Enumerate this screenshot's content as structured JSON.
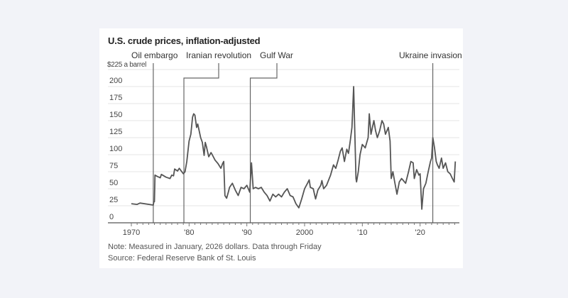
{
  "chart_data": {
    "type": "line",
    "title": "U.S. crude prices, inflation-adjusted",
    "ylabel_unit": "$225 a barrel",
    "ylim": [
      0,
      225
    ],
    "yticks": [
      0,
      25,
      50,
      75,
      100,
      125,
      150,
      175,
      200
    ],
    "xlim": [
      1968,
      2026.5
    ],
    "xticks": [
      {
        "v": 1970,
        "label": "1970"
      },
      {
        "v": 1980,
        "label": "'80"
      },
      {
        "v": 1990,
        "label": "'90"
      },
      {
        "v": 2000,
        "label": "2000"
      },
      {
        "v": 2010,
        "label": "'10"
      },
      {
        "v": 2020,
        "label": "'20"
      }
    ],
    "grid": true,
    "line_color": "#555555",
    "annotations": [
      {
        "label": "Oil embargo",
        "x": 1973.8
      },
      {
        "label": "Iranian revolution",
        "x": 1979.1
      },
      {
        "label": "Gulf War",
        "x": 1990.6
      },
      {
        "label": "Ukraine invasion",
        "x": 2022.2
      }
    ],
    "series": [
      {
        "values": [
          [
            1970,
            28
          ],
          [
            1971,
            27
          ],
          [
            1971.5,
            29
          ],
          [
            1973.8,
            26
          ],
          [
            1973.9,
            31
          ],
          [
            1974.0,
            31
          ],
          [
            1974.1,
            70
          ],
          [
            1974.5,
            68
          ],
          [
            1975,
            66
          ],
          [
            1975.2,
            71
          ],
          [
            1976,
            67
          ],
          [
            1976.7,
            65
          ],
          [
            1977,
            70
          ],
          [
            1977.3,
            69
          ],
          [
            1977.5,
            79
          ],
          [
            1978,
            76
          ],
          [
            1978.3,
            80
          ],
          [
            1979,
            72
          ],
          [
            1979.3,
            75
          ],
          [
            1979.6,
            90
          ],
          [
            1980,
            120
          ],
          [
            1980.3,
            130
          ],
          [
            1980.6,
            155
          ],
          [
            1980.8,
            160
          ],
          [
            1981,
            158
          ],
          [
            1981.3,
            140
          ],
          [
            1981.5,
            145
          ],
          [
            1982,
            125
          ],
          [
            1982.3,
            118
          ],
          [
            1982.6,
            99
          ],
          [
            1982.8,
            118
          ],
          [
            1983,
            112
          ],
          [
            1983.4,
            97
          ],
          [
            1983.8,
            103
          ],
          [
            1984,
            100
          ],
          [
            1984.5,
            92
          ],
          [
            1985,
            87
          ],
          [
            1985.5,
            80
          ],
          [
            1985.8,
            87
          ],
          [
            1986,
            90
          ],
          [
            1986.2,
            40
          ],
          [
            1986.5,
            36
          ],
          [
            1986.8,
            45
          ],
          [
            1987,
            52
          ],
          [
            1987.5,
            58
          ],
          [
            1988,
            48
          ],
          [
            1988.5,
            40
          ],
          [
            1989,
            52
          ],
          [
            1989.5,
            50
          ],
          [
            1990,
            55
          ],
          [
            1990.5,
            45
          ],
          [
            1990.8,
            88
          ],
          [
            1991.1,
            50
          ],
          [
            1991.5,
            52
          ],
          [
            1992,
            50
          ],
          [
            1992.5,
            52
          ],
          [
            1993,
            45
          ],
          [
            1993.5,
            40
          ],
          [
            1994,
            32
          ],
          [
            1994.5,
            42
          ],
          [
            1995,
            38
          ],
          [
            1995.5,
            42
          ],
          [
            1996,
            38
          ],
          [
            1996.5,
            45
          ],
          [
            1997,
            50
          ],
          [
            1997.5,
            40
          ],
          [
            1998,
            38
          ],
          [
            1998.5,
            28
          ],
          [
            1999,
            22
          ],
          [
            1999.5,
            35
          ],
          [
            2000,
            50
          ],
          [
            2000.5,
            58
          ],
          [
            2000.8,
            63
          ],
          [
            2001,
            52
          ],
          [
            2001.5,
            50
          ],
          [
            2001.9,
            35
          ],
          [
            2002.3,
            48
          ],
          [
            2002.8,
            55
          ],
          [
            2003,
            62
          ],
          [
            2003.3,
            50
          ],
          [
            2003.8,
            55
          ],
          [
            2004.5,
            70
          ],
          [
            2005,
            85
          ],
          [
            2005.4,
            80
          ],
          [
            2005.8,
            92
          ],
          [
            2006.2,
            105
          ],
          [
            2006.5,
            110
          ],
          [
            2006.9,
            90
          ],
          [
            2007.3,
            108
          ],
          [
            2007.6,
            102
          ],
          [
            2007.9,
            120
          ],
          [
            2008.2,
            140
          ],
          [
            2008.5,
            200
          ],
          [
            2008.7,
            130
          ],
          [
            2008.9,
            65
          ],
          [
            2009,
            60
          ],
          [
            2009.3,
            75
          ],
          [
            2009.6,
            100
          ],
          [
            2010,
            115
          ],
          [
            2010.5,
            110
          ],
          [
            2011,
            125
          ],
          [
            2011.2,
            160
          ],
          [
            2011.5,
            130
          ],
          [
            2012,
            150
          ],
          [
            2012.3,
            135
          ],
          [
            2012.6,
            125
          ],
          [
            2013,
            135
          ],
          [
            2013.4,
            150
          ],
          [
            2013.7,
            145
          ],
          [
            2014,
            130
          ],
          [
            2014.5,
            140
          ],
          [
            2014.8,
            120
          ],
          [
            2015,
            65
          ],
          [
            2015.3,
            75
          ],
          [
            2015.6,
            60
          ],
          [
            2016,
            42
          ],
          [
            2016.4,
            60
          ],
          [
            2016.8,
            65
          ],
          [
            2017,
            63
          ],
          [
            2017.5,
            58
          ],
          [
            2018,
            75
          ],
          [
            2018.4,
            90
          ],
          [
            2018.8,
            88
          ],
          [
            2019,
            65
          ],
          [
            2019.4,
            78
          ],
          [
            2019.8,
            70
          ],
          [
            2020,
            72
          ],
          [
            2020.3,
            20
          ],
          [
            2020.6,
            50
          ],
          [
            2021,
            58
          ],
          [
            2021.4,
            75
          ],
          [
            2021.8,
            90
          ],
          [
            2022,
            95
          ],
          [
            2022.2,
            125
          ],
          [
            2022.5,
            110
          ],
          [
            2022.8,
            90
          ],
          [
            2023,
            85
          ],
          [
            2023.3,
            80
          ],
          [
            2023.7,
            95
          ],
          [
            2024,
            80
          ],
          [
            2024.4,
            88
          ],
          [
            2024.8,
            75
          ],
          [
            2025.2,
            72
          ],
          [
            2025.6,
            65
          ],
          [
            2025.9,
            60
          ],
          [
            2026.1,
            90
          ]
        ]
      }
    ]
  },
  "note": "Note: Measured in January, 2026 dollars. Data through Friday",
  "source": "Source: Federal Reserve Bank of St. Louis"
}
